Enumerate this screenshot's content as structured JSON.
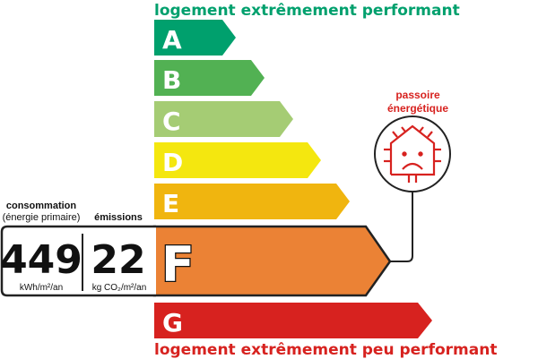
{
  "header": {
    "top_label": "logement extrêmement performant",
    "bottom_label": "logement extrêmement peu performant"
  },
  "classes": [
    {
      "letter": "A",
      "color": "#00a06d"
    },
    {
      "letter": "B",
      "color": "#52b153"
    },
    {
      "letter": "C",
      "color": "#a5cc74"
    },
    {
      "letter": "D",
      "color": "#f4e70f"
    },
    {
      "letter": "E",
      "color": "#f0b50f"
    },
    {
      "letter": "F",
      "color": "#eb8235"
    },
    {
      "letter": "G",
      "color": "#d7221f"
    }
  ],
  "current_class": "F",
  "consumption": {
    "label": "consommation",
    "sublabel": "(énergie primaire)",
    "value": "449",
    "unit": "kWh/m²/an"
  },
  "emissions": {
    "label": "émissions",
    "value": "22",
    "unit": "kg CO₂/m²/an"
  },
  "badge": {
    "line1": "passoire",
    "line2": "énergétique",
    "icon": "sad-house-heat-loss-icon",
    "color": "#d7221f"
  }
}
